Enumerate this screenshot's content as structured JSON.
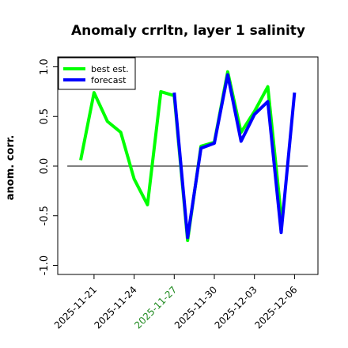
{
  "chart_data": {
    "type": "line",
    "title": "Anomaly crrltn, layer 1 salinity",
    "ylabel": "anom. corr.",
    "xlabel": "",
    "ylim": [
      -1.05,
      1.08
    ],
    "x_dates": [
      "2025-11-20",
      "2025-11-21",
      "2025-11-22",
      "2025-11-23",
      "2025-11-24",
      "2025-11-25",
      "2025-11-26",
      "2025-11-27",
      "2025-11-28",
      "2025-11-29",
      "2025-11-30",
      "2025-12-01",
      "2025-12-02",
      "2025-12-03",
      "2025-12-04",
      "2025-12-05",
      "2025-12-06"
    ],
    "xticks": [
      {
        "date": "2025-11-21",
        "label": "2025-11-21",
        "color": "#000000"
      },
      {
        "date": "2025-11-24",
        "label": "2025-11-24",
        "color": "#000000"
      },
      {
        "date": "2025-11-27",
        "label": "2025-11-27",
        "color": "#228B22"
      },
      {
        "date": "2025-11-30",
        "label": "2025-11-30",
        "color": "#000000"
      },
      {
        "date": "2025-12-03",
        "label": "2025-12-03",
        "color": "#000000"
      },
      {
        "date": "2025-12-06",
        "label": "2025-12-06",
        "color": "#000000"
      }
    ],
    "yticks": [
      -1.0,
      -0.5,
      0.0,
      0.5,
      1.0
    ],
    "yticklabels": [
      "-1.0",
      "-0.5",
      "0.0",
      "0.5",
      "1.0"
    ],
    "hline": 0.0,
    "legend_position": "top-left",
    "series": [
      {
        "name": "best est.",
        "color": "#00ff00",
        "values": [
          0.06,
          0.74,
          0.45,
          0.34,
          -0.13,
          -0.39,
          0.75,
          0.71,
          -0.75,
          0.2,
          0.24,
          0.95,
          0.34,
          0.55,
          0.8,
          -0.5,
          null
        ]
      },
      {
        "name": "forecast",
        "color": "#0000ff",
        "values": [
          null,
          null,
          null,
          null,
          null,
          null,
          null,
          0.74,
          -0.72,
          0.18,
          0.23,
          0.92,
          0.25,
          0.52,
          0.65,
          -0.67,
          0.74
        ]
      }
    ]
  }
}
